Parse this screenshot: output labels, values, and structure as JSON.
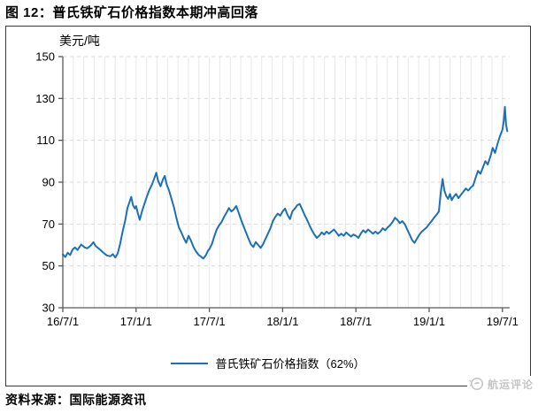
{
  "figure": {
    "title": "图 12：普氏铁矿石价格指数本期冲高回落",
    "source": "资料来源：国际能源资讯",
    "watermark": "航运评论"
  },
  "chart_data": {
    "type": "line",
    "title": "普氏铁矿石价格指数本期冲高回落",
    "unit_label": "美元/吨",
    "ylabel": "美元/吨",
    "xlabel": "",
    "ylim": [
      30,
      150
    ],
    "y_ticks": [
      30,
      50,
      70,
      90,
      110,
      130,
      150
    ],
    "x_tick_labels": [
      "16/7/1",
      "17/1/1",
      "17/7/1",
      "18/1/1",
      "18/7/1",
      "19/1/1",
      "19/7/1"
    ],
    "x_tick_positions_months": [
      0,
      6,
      12,
      18,
      24,
      30,
      36
    ],
    "x_unit": "months from 16/7/1",
    "grid": true,
    "legend_position": "bottom",
    "legend": [
      "普氏铁矿石价格指数（62%）"
    ],
    "line_color": "#1B70B8",
    "series": [
      {
        "name": "普氏铁矿石价格指数（62%）",
        "points": [
          [
            0,
            55.5
          ],
          [
            0.2,
            54.2
          ],
          [
            0.4,
            56.3
          ],
          [
            0.6,
            55.2
          ],
          [
            0.8,
            57.8
          ],
          [
            1,
            58.8
          ],
          [
            1.2,
            57.6
          ],
          [
            1.5,
            60.2
          ],
          [
            1.8,
            58.8
          ],
          [
            2,
            58.4
          ],
          [
            2.3,
            59.8
          ],
          [
            2.5,
            61.3
          ],
          [
            2.7,
            59.4
          ],
          [
            3,
            58
          ],
          [
            3.3,
            56.4
          ],
          [
            3.6,
            55
          ],
          [
            3.9,
            54.6
          ],
          [
            4.1,
            55.6
          ],
          [
            4.3,
            54
          ],
          [
            4.5,
            56
          ],
          [
            4.7,
            60.8
          ],
          [
            4.9,
            66.5
          ],
          [
            5.1,
            71.5
          ],
          [
            5.3,
            77.8
          ],
          [
            5.45,
            80.3
          ],
          [
            5.6,
            83
          ],
          [
            5.75,
            79
          ],
          [
            5.9,
            77.4
          ],
          [
            6,
            78.6
          ],
          [
            6.15,
            75
          ],
          [
            6.3,
            72
          ],
          [
            6.5,
            76.4
          ],
          [
            6.7,
            80
          ],
          [
            6.9,
            83.4
          ],
          [
            7.1,
            86.5
          ],
          [
            7.3,
            88.8
          ],
          [
            7.5,
            92
          ],
          [
            7.65,
            94.5
          ],
          [
            7.8,
            90.8
          ],
          [
            8,
            88
          ],
          [
            8.2,
            91.4
          ],
          [
            8.35,
            93
          ],
          [
            8.5,
            89
          ],
          [
            8.7,
            86
          ],
          [
            8.9,
            82
          ],
          [
            9.1,
            78
          ],
          [
            9.3,
            73
          ],
          [
            9.5,
            68.5
          ],
          [
            9.7,
            66
          ],
          [
            9.9,
            63.4
          ],
          [
            10.1,
            61
          ],
          [
            10.3,
            64.4
          ],
          [
            10.5,
            62
          ],
          [
            10.7,
            59
          ],
          [
            10.9,
            57
          ],
          [
            11.1,
            55.4
          ],
          [
            11.3,
            54.5
          ],
          [
            11.5,
            53.5
          ],
          [
            11.7,
            55
          ],
          [
            11.9,
            57.4
          ],
          [
            12,
            58
          ],
          [
            12.2,
            60.4
          ],
          [
            12.4,
            64
          ],
          [
            12.6,
            67.4
          ],
          [
            12.8,
            69.4
          ],
          [
            13,
            71
          ],
          [
            13.2,
            73.4
          ],
          [
            13.4,
            75.4
          ],
          [
            13.6,
            77.6
          ],
          [
            13.8,
            76
          ],
          [
            14,
            77
          ],
          [
            14.2,
            78.6
          ],
          [
            14.4,
            75.4
          ],
          [
            14.6,
            72
          ],
          [
            14.8,
            69
          ],
          [
            15,
            66
          ],
          [
            15.2,
            63
          ],
          [
            15.4,
            60.4
          ],
          [
            15.6,
            59
          ],
          [
            15.8,
            61.4
          ],
          [
            16,
            60
          ],
          [
            16.2,
            58.6
          ],
          [
            16.4,
            60.4
          ],
          [
            16.6,
            63
          ],
          [
            16.8,
            65.4
          ],
          [
            17,
            68
          ],
          [
            17.2,
            71.4
          ],
          [
            17.4,
            73.4
          ],
          [
            17.6,
            75
          ],
          [
            17.8,
            74
          ],
          [
            18,
            76
          ],
          [
            18.2,
            77.4
          ],
          [
            18.4,
            74.4
          ],
          [
            18.6,
            72.4
          ],
          [
            18.8,
            76
          ],
          [
            19,
            77.4
          ],
          [
            19.2,
            79
          ],
          [
            19.4,
            79.6
          ],
          [
            19.6,
            77
          ],
          [
            19.8,
            74.4
          ],
          [
            20,
            72
          ],
          [
            20.2,
            69.4
          ],
          [
            20.4,
            67
          ],
          [
            20.6,
            65
          ],
          [
            20.8,
            63.4
          ],
          [
            21,
            64.4
          ],
          [
            21.2,
            66
          ],
          [
            21.4,
            65
          ],
          [
            21.6,
            66.4
          ],
          [
            21.8,
            65.4
          ],
          [
            22,
            66.4
          ],
          [
            22.2,
            67.4
          ],
          [
            22.4,
            66
          ],
          [
            22.6,
            64.4
          ],
          [
            22.8,
            65.4
          ],
          [
            23,
            64.4
          ],
          [
            23.2,
            66
          ],
          [
            23.4,
            65
          ],
          [
            23.6,
            64
          ],
          [
            23.8,
            65
          ],
          [
            24,
            64.4
          ],
          [
            24.2,
            63.4
          ],
          [
            24.4,
            65.4
          ],
          [
            24.6,
            67
          ],
          [
            24.8,
            66
          ],
          [
            25,
            67.4
          ],
          [
            25.2,
            66.4
          ],
          [
            25.4,
            65.4
          ],
          [
            25.6,
            66.4
          ],
          [
            25.8,
            65.4
          ],
          [
            26,
            66.4
          ],
          [
            26.2,
            68
          ],
          [
            26.4,
            67
          ],
          [
            26.6,
            68.4
          ],
          [
            26.8,
            69.4
          ],
          [
            27,
            71
          ],
          [
            27.2,
            73
          ],
          [
            27.4,
            72
          ],
          [
            27.6,
            70.4
          ],
          [
            27.8,
            71.4
          ],
          [
            28,
            70
          ],
          [
            28.2,
            67.4
          ],
          [
            28.4,
            65
          ],
          [
            28.6,
            62.4
          ],
          [
            28.8,
            61
          ],
          [
            29,
            63
          ],
          [
            29.2,
            65
          ],
          [
            29.4,
            66.4
          ],
          [
            29.6,
            67.4
          ],
          [
            29.8,
            68.4
          ],
          [
            30,
            70
          ],
          [
            30.2,
            71.4
          ],
          [
            30.4,
            73
          ],
          [
            30.6,
            74.4
          ],
          [
            30.8,
            76
          ],
          [
            30.95,
            85
          ],
          [
            31.1,
            91.5
          ],
          [
            31.25,
            86
          ],
          [
            31.4,
            83.4
          ],
          [
            31.55,
            82
          ],
          [
            31.7,
            84.4
          ],
          [
            31.85,
            81.4
          ],
          [
            32,
            83
          ],
          [
            32.2,
            84.4
          ],
          [
            32.4,
            82.4
          ],
          [
            32.6,
            84
          ],
          [
            32.8,
            85.4
          ],
          [
            33,
            87
          ],
          [
            33.2,
            86
          ],
          [
            33.4,
            87.4
          ],
          [
            33.6,
            88.4
          ],
          [
            33.8,
            92
          ],
          [
            34,
            95.4
          ],
          [
            34.2,
            94
          ],
          [
            34.4,
            97
          ],
          [
            34.6,
            100
          ],
          [
            34.8,
            98.4
          ],
          [
            35,
            102
          ],
          [
            35.2,
            106.4
          ],
          [
            35.4,
            104
          ],
          [
            35.6,
            108.4
          ],
          [
            35.8,
            112
          ],
          [
            36,
            115
          ],
          [
            36.1,
            119
          ],
          [
            36.2,
            126
          ],
          [
            36.3,
            117.4
          ],
          [
            36.4,
            114.4
          ]
        ]
      }
    ]
  },
  "colors": {
    "line": "#1B70B8",
    "axis": "#595959",
    "grid_vertical": "#e8e8e8",
    "grid_horizontal": "#d9d9d9",
    "watermark": "#c6c6c6",
    "border": "#3a3a3a"
  }
}
